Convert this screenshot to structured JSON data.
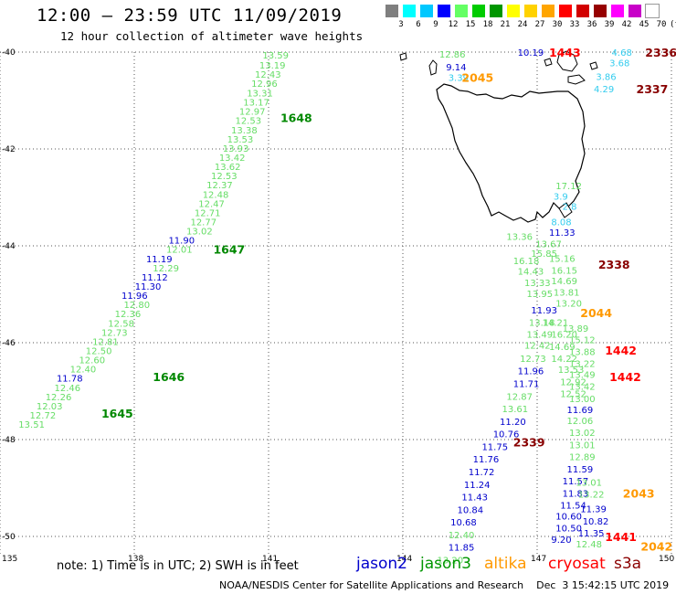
{
  "title": "12:00 – 23:59 UTC 11/09/2019",
  "subtitle": "12 hour collection of altimeter wave heights",
  "legend": {
    "colors": [
      "#7f7f7f",
      "#00ffff",
      "#00c8ff",
      "#0000ff",
      "#64ff64",
      "#00cc00",
      "#009600",
      "#ffff00",
      "#ffd200",
      "#ffa500",
      "#ff0000",
      "#d20000",
      "#960000",
      "#ff00ff",
      "#c800c8",
      "#ffffff"
    ],
    "labels": [
      "3",
      "6",
      "9",
      "12",
      "15",
      "18",
      "21",
      "24",
      "27",
      "30",
      "33",
      "36",
      "39",
      "42",
      "45",
      "70",
      "(ft)"
    ]
  },
  "axes": {
    "lat_labels": [
      "-40",
      "-42",
      "-44",
      "-46",
      "-48",
      "-50"
    ],
    "lon_labels": [
      "135",
      "138",
      "141",
      "144",
      "147",
      "150"
    ]
  },
  "footnote": "note: 1) Time is in UTC; 2) SWH is in feet",
  "satellites": [
    {
      "name": "jason2",
      "color": "#0000cc"
    },
    {
      "name": "jason3",
      "color": "#009600"
    },
    {
      "name": "altika",
      "color": "#ff9900"
    },
    {
      "name": "cryosat",
      "color": "#ff0000"
    },
    {
      "name": "s3a",
      "color": "#8b0000"
    }
  ],
  "credit": "NOAA/NESDIS Center for Satellite Applications and Research    Dec  3 15:42:15 UTC 2019",
  "colors": {
    "lightgreen": "#66dd66",
    "green": "#008800",
    "blue": "#0000cc",
    "cyan": "#33ccee",
    "orange": "#ff9900",
    "red": "#ff0000",
    "darkred": "#880000"
  },
  "track_times": [
    {
      "text": "1648",
      "lon": 141.55,
      "lat": -41.35,
      "c": "green"
    },
    {
      "text": "1647",
      "lon": 140.05,
      "lat": -44.07,
      "c": "green"
    },
    {
      "text": "1646",
      "lon": 138.7,
      "lat": -46.7,
      "c": "green"
    },
    {
      "text": "1645",
      "lon": 137.55,
      "lat": -47.45,
      "c": "green"
    },
    {
      "text": "2045",
      "lon": 145.6,
      "lat": -40.52,
      "c": "orange"
    },
    {
      "text": "1443",
      "lon": 147.55,
      "lat": -40.0,
      "c": "red"
    },
    {
      "text": "2336",
      "lon": 149.7,
      "lat": -40.0,
      "c": "darkred"
    },
    {
      "text": "2337",
      "lon": 149.5,
      "lat": -40.75,
      "c": "darkred"
    },
    {
      "text": "2338",
      "lon": 148.65,
      "lat": -44.38,
      "c": "darkred"
    },
    {
      "text": "2044",
      "lon": 148.25,
      "lat": -45.38,
      "c": "orange"
    },
    {
      "text": "1442",
      "lon": 148.8,
      "lat": -46.15,
      "c": "red"
    },
    {
      "text": "1442",
      "lon": 148.9,
      "lat": -46.7,
      "c": "red"
    },
    {
      "text": "2339",
      "lon": 146.75,
      "lat": -48.05,
      "c": "darkred"
    },
    {
      "text": "2043",
      "lon": 149.2,
      "lat": -49.1,
      "c": "orange"
    },
    {
      "text": "1441",
      "lon": 148.8,
      "lat": -50.0,
      "c": "red"
    },
    {
      "text": "2042",
      "lon": 149.6,
      "lat": -50.2,
      "c": "orange"
    }
  ],
  "obs": [
    {
      "text": "13.59",
      "lon": 141.15,
      "lat": -40.06,
      "c": "lightgreen"
    },
    {
      "text": "13.19",
      "lon": 141.08,
      "lat": -40.26,
      "c": "lightgreen"
    },
    {
      "text": "12.43",
      "lon": 140.98,
      "lat": -40.45,
      "c": "lightgreen"
    },
    {
      "text": "12.96",
      "lon": 140.9,
      "lat": -40.64,
      "c": "lightgreen"
    },
    {
      "text": "13.31",
      "lon": 140.8,
      "lat": -40.84,
      "c": "lightgreen"
    },
    {
      "text": "13.17",
      "lon": 140.72,
      "lat": -41.03,
      "c": "lightgreen"
    },
    {
      "text": "12.97",
      "lon": 140.63,
      "lat": -41.22,
      "c": "lightgreen"
    },
    {
      "text": "12.53",
      "lon": 140.54,
      "lat": -41.41,
      "c": "lightgreen"
    },
    {
      "text": "13.38",
      "lon": 140.45,
      "lat": -41.6,
      "c": "lightgreen"
    },
    {
      "text": "13.53",
      "lon": 140.36,
      "lat": -41.79,
      "c": "lightgreen"
    },
    {
      "text": "13.93",
      "lon": 140.26,
      "lat": -41.98,
      "c": "lightgreen"
    },
    {
      "text": "13.42",
      "lon": 140.18,
      "lat": -42.17,
      "c": "lightgreen"
    },
    {
      "text": "13.62",
      "lon": 140.08,
      "lat": -42.36,
      "c": "lightgreen"
    },
    {
      "text": "12.53",
      "lon": 140.0,
      "lat": -42.55,
      "c": "lightgreen"
    },
    {
      "text": "12.37",
      "lon": 139.9,
      "lat": -42.74,
      "c": "lightgreen"
    },
    {
      "text": "12.48",
      "lon": 139.81,
      "lat": -42.93,
      "c": "lightgreen"
    },
    {
      "text": "12.47",
      "lon": 139.72,
      "lat": -43.12,
      "c": "lightgreen"
    },
    {
      "text": "12.71",
      "lon": 139.63,
      "lat": -43.31,
      "c": "lightgreen"
    },
    {
      "text": "12.77",
      "lon": 139.54,
      "lat": -43.5,
      "c": "lightgreen"
    },
    {
      "text": "13.02",
      "lon": 139.45,
      "lat": -43.69,
      "c": "lightgreen"
    },
    {
      "text": "11.90",
      "lon": 139.05,
      "lat": -43.88,
      "c": "blue"
    },
    {
      "text": "12.01",
      "lon": 139.0,
      "lat": -44.07,
      "c": "lightgreen"
    },
    {
      "text": "11.19",
      "lon": 138.55,
      "lat": -44.26,
      "c": "blue"
    },
    {
      "text": "12.29",
      "lon": 138.7,
      "lat": -44.45,
      "c": "lightgreen"
    },
    {
      "text": "11.12",
      "lon": 138.45,
      "lat": -44.64,
      "c": "blue"
    },
    {
      "text": "11.30",
      "lon": 138.3,
      "lat": -44.83,
      "c": "blue"
    },
    {
      "text": "11.96",
      "lon": 138.0,
      "lat": -45.02,
      "c": "blue"
    },
    {
      "text": "12.80",
      "lon": 138.05,
      "lat": -45.21,
      "c": "lightgreen"
    },
    {
      "text": "12.36",
      "lon": 137.85,
      "lat": -45.4,
      "c": "lightgreen"
    },
    {
      "text": "12.58",
      "lon": 137.7,
      "lat": -45.59,
      "c": "lightgreen"
    },
    {
      "text": "12.73",
      "lon": 137.55,
      "lat": -45.78,
      "c": "lightgreen"
    },
    {
      "text": "12.81",
      "lon": 137.35,
      "lat": -45.97,
      "c": "lightgreen"
    },
    {
      "text": "12.50",
      "lon": 137.2,
      "lat": -46.16,
      "c": "lightgreen"
    },
    {
      "text": "12.60",
      "lon": 137.05,
      "lat": -46.35,
      "c": "lightgreen"
    },
    {
      "text": "12.40",
      "lon": 136.85,
      "lat": -46.54,
      "c": "lightgreen"
    },
    {
      "text": "11.78",
      "lon": 136.55,
      "lat": -46.73,
      "c": "blue"
    },
    {
      "text": "12.46",
      "lon": 136.5,
      "lat": -46.92,
      "c": "lightgreen"
    },
    {
      "text": "12.26",
      "lon": 136.3,
      "lat": -47.11,
      "c": "lightgreen"
    },
    {
      "text": "12.03",
      "lon": 136.1,
      "lat": -47.3,
      "c": "lightgreen"
    },
    {
      "text": "12.72",
      "lon": 135.95,
      "lat": -47.49,
      "c": "lightgreen"
    },
    {
      "text": "13.51",
      "lon": 135.7,
      "lat": -47.68,
      "c": "lightgreen"
    },
    {
      "text": "12.86",
      "lon": 145.1,
      "lat": -40.04,
      "c": "lightgreen"
    },
    {
      "text": "9.14",
      "lon": 145.25,
      "lat": -40.3,
      "c": "blue"
    },
    {
      "text": "3.39",
      "lon": 145.3,
      "lat": -40.52,
      "c": "cyan"
    },
    {
      "text": "10.19",
      "lon": 146.85,
      "lat": -40.0,
      "c": "blue"
    },
    {
      "text": "4.68",
      "lon": 148.95,
      "lat": -40.0,
      "c": "cyan"
    },
    {
      "text": "3.68",
      "lon": 148.9,
      "lat": -40.22,
      "c": "cyan"
    },
    {
      "text": "3.86",
      "lon": 148.6,
      "lat": -40.5,
      "c": "cyan"
    },
    {
      "text": "4.29",
      "lon": 148.55,
      "lat": -40.75,
      "c": "cyan"
    },
    {
      "text": "17.12",
      "lon": 147.7,
      "lat": -42.75,
      "c": "lightgreen"
    },
    {
      "text": "3.9",
      "lon": 147.65,
      "lat": -42.97,
      "c": "cyan"
    },
    {
      "text": "2.8",
      "lon": 147.85,
      "lat": -43.18,
      "c": "cyan"
    },
    {
      "text": "8.08",
      "lon": 147.6,
      "lat": -43.5,
      "c": "cyan"
    },
    {
      "text": "11.33",
      "lon": 147.55,
      "lat": -43.72,
      "c": "blue"
    },
    {
      "text": "13.36",
      "lon": 146.6,
      "lat": -43.8,
      "c": "lightgreen"
    },
    {
      "text": "13.67",
      "lon": 147.25,
      "lat": -43.95,
      "c": "lightgreen"
    },
    {
      "text": "15.85",
      "lon": 147.15,
      "lat": -44.15,
      "c": "lightgreen"
    },
    {
      "text": "16.18",
      "lon": 146.75,
      "lat": -44.3,
      "c": "lightgreen"
    },
    {
      "text": "15.16",
      "lon": 147.55,
      "lat": -44.25,
      "c": "lightgreen"
    },
    {
      "text": "14.43",
      "lon": 146.85,
      "lat": -44.52,
      "c": "lightgreen"
    },
    {
      "text": "16.15",
      "lon": 147.6,
      "lat": -44.5,
      "c": "lightgreen"
    },
    {
      "text": "13.33",
      "lon": 147.0,
      "lat": -44.75,
      "c": "lightgreen"
    },
    {
      "text": "14.69",
      "lon": 147.6,
      "lat": -44.72,
      "c": "lightgreen"
    },
    {
      "text": "13.81",
      "lon": 147.65,
      "lat": -44.95,
      "c": "lightgreen"
    },
    {
      "text": "13.95",
      "lon": 147.05,
      "lat": -44.98,
      "c": "lightgreen"
    },
    {
      "text": "13.20",
      "lon": 147.7,
      "lat": -45.18,
      "c": "lightgreen"
    },
    {
      "text": "11.93",
      "lon": 147.15,
      "lat": -45.32,
      "c": "blue"
    },
    {
      "text": "13.18",
      "lon": 147.1,
      "lat": -45.58,
      "c": "lightgreen"
    },
    {
      "text": "14.21",
      "lon": 147.4,
      "lat": -45.58,
      "c": "lightgreen"
    },
    {
      "text": "13.89",
      "lon": 147.85,
      "lat": -45.7,
      "c": "lightgreen"
    },
    {
      "text": "13.49",
      "lon": 147.05,
      "lat": -45.82,
      "c": "lightgreen"
    },
    {
      "text": "16.20",
      "lon": 147.6,
      "lat": -45.82,
      "c": "lightgreen"
    },
    {
      "text": "15.12",
      "lon": 148.0,
      "lat": -45.93,
      "c": "lightgreen"
    },
    {
      "text": "12.42",
      "lon": 147.0,
      "lat": -46.05,
      "c": "lightgreen"
    },
    {
      "text": "14.69",
      "lon": 147.55,
      "lat": -46.08,
      "c": "lightgreen"
    },
    {
      "text": "13.88",
      "lon": 148.0,
      "lat": -46.18,
      "c": "lightgreen"
    },
    {
      "text": "12.73",
      "lon": 146.9,
      "lat": -46.32,
      "c": "lightgreen"
    },
    {
      "text": "14.22",
      "lon": 147.6,
      "lat": -46.32,
      "c": "lightgreen"
    },
    {
      "text": "13.22",
      "lon": 148.0,
      "lat": -46.42,
      "c": "lightgreen"
    },
    {
      "text": "11.96",
      "lon": 146.85,
      "lat": -46.58,
      "c": "blue"
    },
    {
      "text": "13.53",
      "lon": 147.75,
      "lat": -46.55,
      "c": "lightgreen"
    },
    {
      "text": "13.49",
      "lon": 148.0,
      "lat": -46.65,
      "c": "lightgreen"
    },
    {
      "text": "11.71",
      "lon": 146.75,
      "lat": -46.84,
      "c": "blue"
    },
    {
      "text": "12.92",
      "lon": 147.8,
      "lat": -46.8,
      "c": "lightgreen"
    },
    {
      "text": "13.42",
      "lon": 148.0,
      "lat": -46.9,
      "c": "lightgreen"
    },
    {
      "text": "12.87",
      "lon": 146.6,
      "lat": -47.1,
      "c": "lightgreen"
    },
    {
      "text": "12.52",
      "lon": 147.8,
      "lat": -47.05,
      "c": "lightgreen"
    },
    {
      "text": "13.00",
      "lon": 148.0,
      "lat": -47.15,
      "c": "lightgreen"
    },
    {
      "text": "13.61",
      "lon": 146.5,
      "lat": -47.36,
      "c": "lightgreen"
    },
    {
      "text": "11.69",
      "lon": 147.95,
      "lat": -47.38,
      "c": "blue"
    },
    {
      "text": "11.20",
      "lon": 146.45,
      "lat": -47.62,
      "c": "blue"
    },
    {
      "text": "12.06",
      "lon": 147.95,
      "lat": -47.6,
      "c": "lightgreen"
    },
    {
      "text": "10.76",
      "lon": 146.3,
      "lat": -47.88,
      "c": "blue"
    },
    {
      "text": "13.02",
      "lon": 148.0,
      "lat": -47.85,
      "c": "lightgreen"
    },
    {
      "text": "11.75",
      "lon": 146.05,
      "lat": -48.14,
      "c": "blue"
    },
    {
      "text": "13.01",
      "lon": 148.0,
      "lat": -48.1,
      "c": "lightgreen"
    },
    {
      "text": "11.76",
      "lon": 145.85,
      "lat": -48.4,
      "c": "blue"
    },
    {
      "text": "12.89",
      "lon": 148.0,
      "lat": -48.35,
      "c": "lightgreen"
    },
    {
      "text": "11.72",
      "lon": 145.75,
      "lat": -48.66,
      "c": "blue"
    },
    {
      "text": "11.59",
      "lon": 147.95,
      "lat": -48.6,
      "c": "blue"
    },
    {
      "text": "11.24",
      "lon": 145.65,
      "lat": -48.92,
      "c": "blue"
    },
    {
      "text": "11.57",
      "lon": 147.85,
      "lat": -48.85,
      "c": "blue"
    },
    {
      "text": "13.01",
      "lon": 148.15,
      "lat": -48.88,
      "c": "lightgreen"
    },
    {
      "text": "11.43",
      "lon": 145.6,
      "lat": -49.18,
      "c": "blue"
    },
    {
      "text": "11.83",
      "lon": 147.85,
      "lat": -49.1,
      "c": "blue"
    },
    {
      "text": "13.22",
      "lon": 148.2,
      "lat": -49.12,
      "c": "lightgreen"
    },
    {
      "text": "10.84",
      "lon": 145.5,
      "lat": -49.44,
      "c": "blue"
    },
    {
      "text": "11.54",
      "lon": 147.8,
      "lat": -49.35,
      "c": "blue"
    },
    {
      "text": "11.39",
      "lon": 148.25,
      "lat": -49.42,
      "c": "blue"
    },
    {
      "text": "10.68",
      "lon": 145.35,
      "lat": -49.7,
      "c": "blue"
    },
    {
      "text": "10.60",
      "lon": 147.7,
      "lat": -49.58,
      "c": "blue"
    },
    {
      "text": "10.82",
      "lon": 148.3,
      "lat": -49.68,
      "c": "blue"
    },
    {
      "text": "12.40",
      "lon": 145.3,
      "lat": -49.96,
      "c": "lightgreen"
    },
    {
      "text": "10.50",
      "lon": 147.7,
      "lat": -49.82,
      "c": "blue"
    },
    {
      "text": "11.35",
      "lon": 148.2,
      "lat": -49.92,
      "c": "blue"
    },
    {
      "text": "11.85",
      "lon": 145.3,
      "lat": -50.22,
      "c": "blue"
    },
    {
      "text": "9.20",
      "lon": 147.6,
      "lat": -50.06,
      "c": "blue"
    },
    {
      "text": "12.48",
      "lon": 148.15,
      "lat": -50.15,
      "c": "lightgreen"
    },
    {
      "text": "13.20",
      "lon": 145.05,
      "lat": -50.48,
      "c": "lightgreen"
    }
  ]
}
